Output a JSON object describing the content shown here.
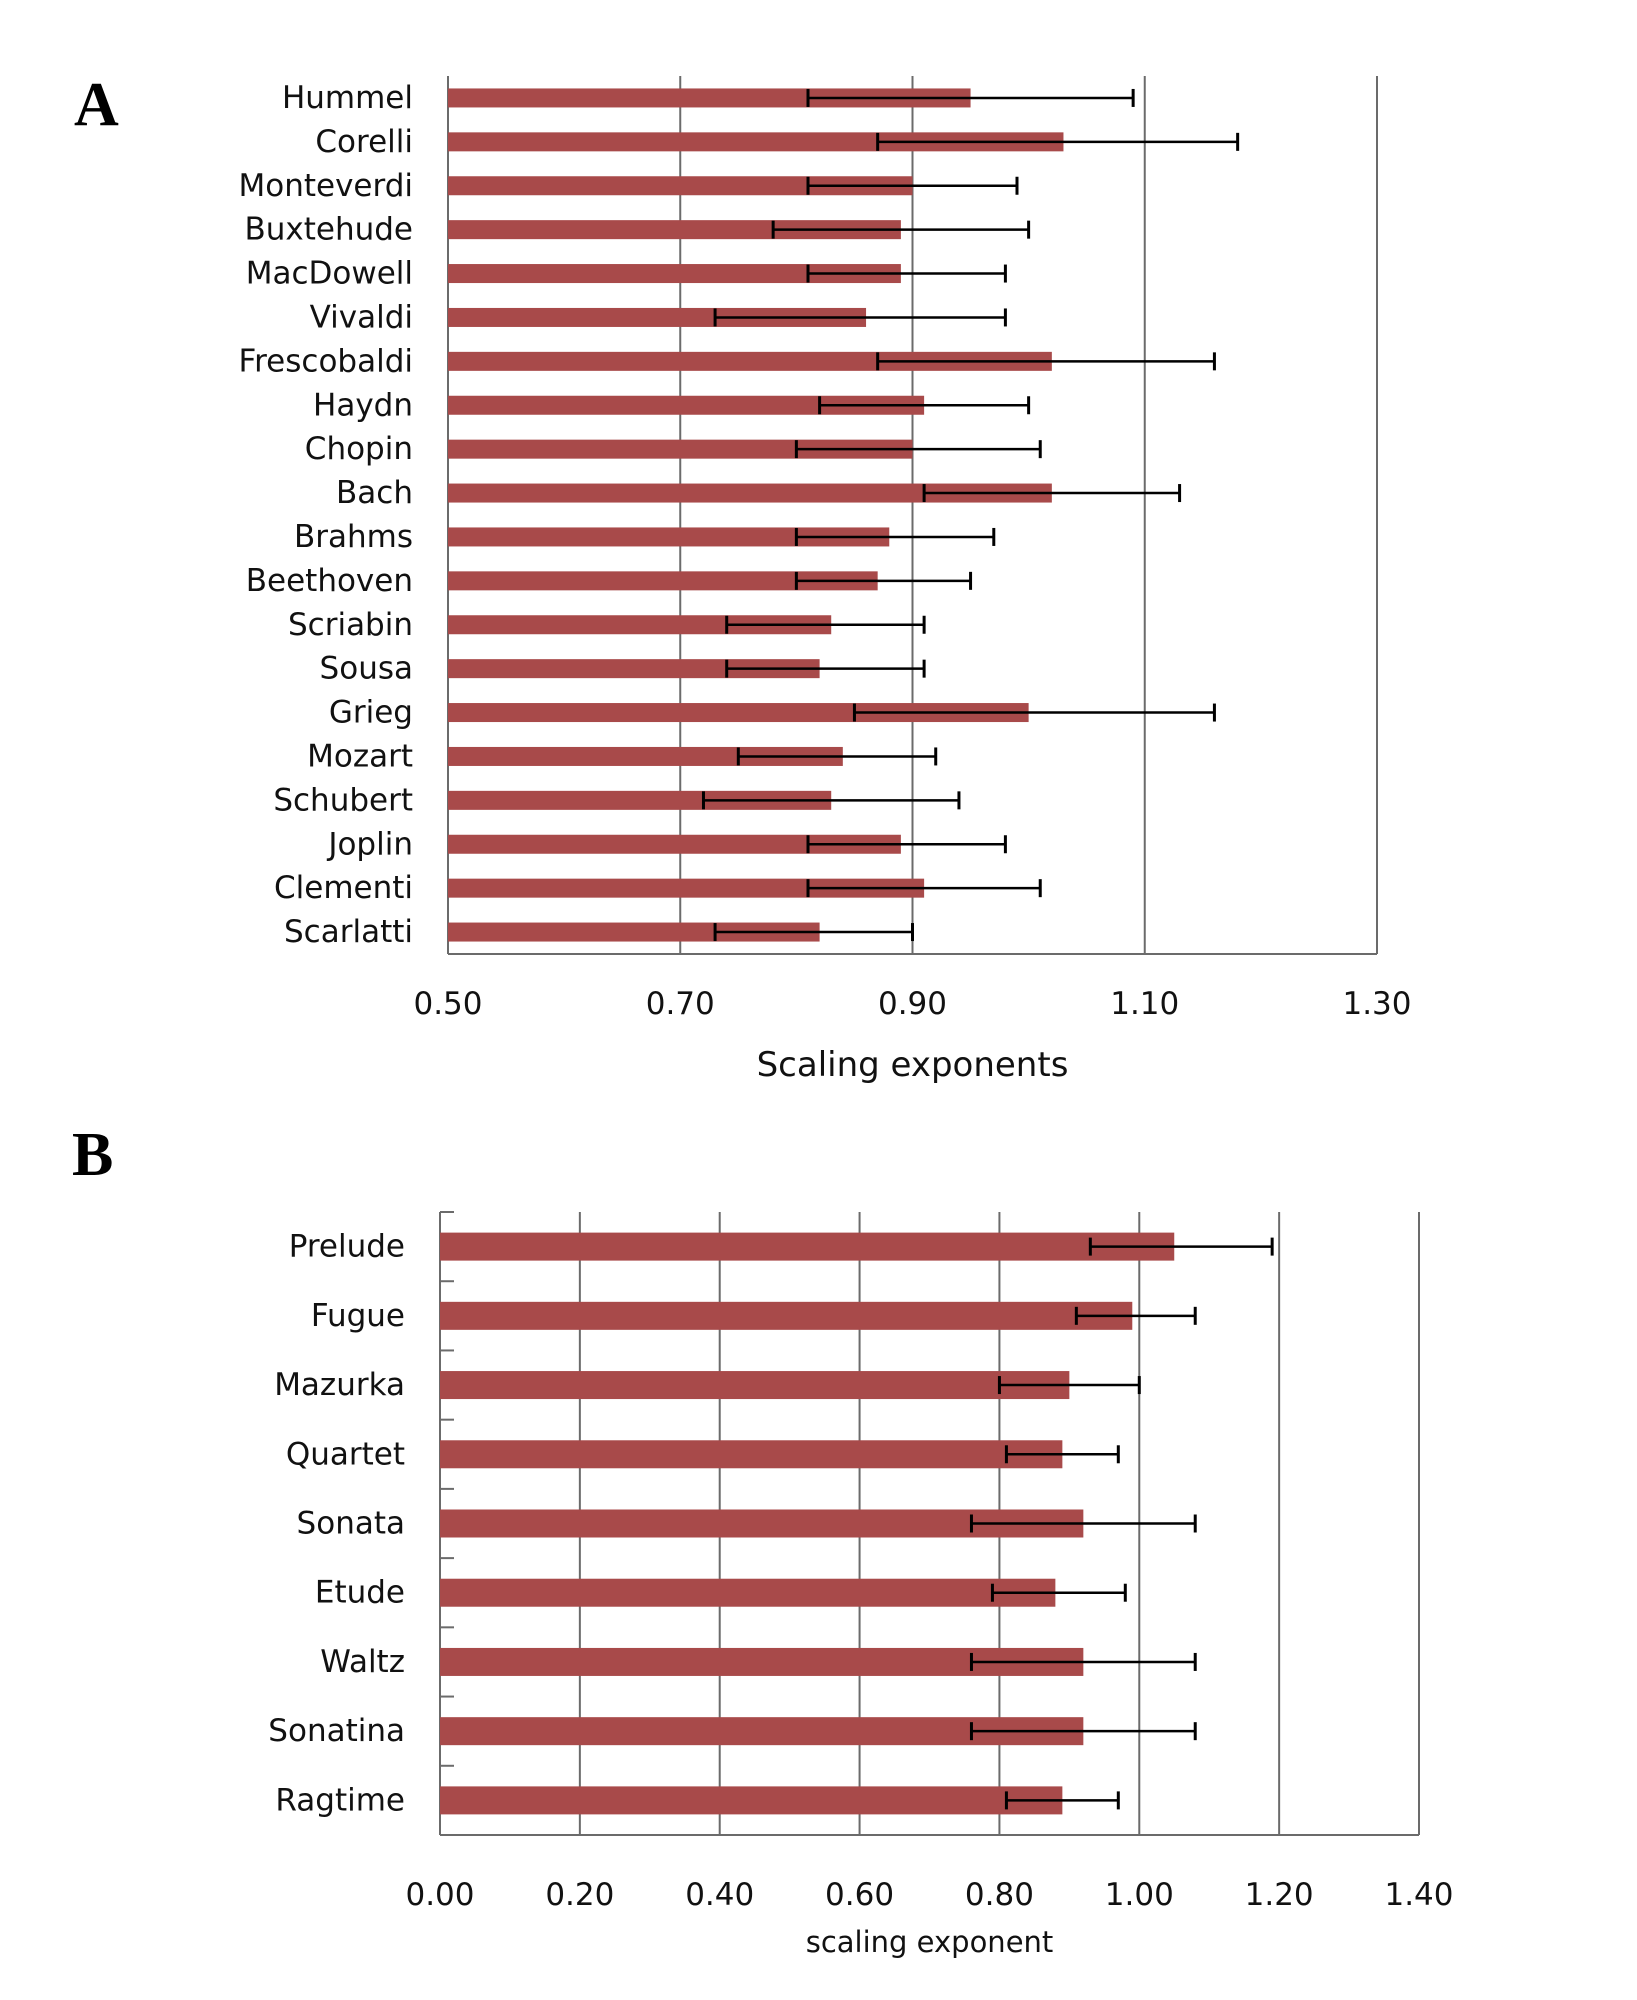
{
  "panels": {
    "a_letter": "A",
    "b_letter": "B"
  },
  "colors": {
    "bar": "#a84a4a",
    "error": "#000000",
    "grid": "#6b6b6b",
    "axis": "#6b6b6b"
  },
  "chart_data": [
    {
      "type": "bar",
      "orientation": "horizontal",
      "categories": [
        "Hummel",
        "Corelli",
        "Monteverdi",
        "Buxtehude",
        "MacDowell",
        "Vivaldi",
        "Frescobaldi",
        "Haydn",
        "Chopin",
        "Bach",
        "Brahms",
        "Beethoven",
        "Scriabin",
        "Sousa",
        "Grieg",
        "Mozart",
        "Schubert",
        "Joplin",
        "Clementi",
        "Scarlatti"
      ],
      "values": [
        0.95,
        1.03,
        0.9,
        0.89,
        0.89,
        0.86,
        1.02,
        0.91,
        0.9,
        1.02,
        0.88,
        0.87,
        0.83,
        0.82,
        1.0,
        0.84,
        0.83,
        0.89,
        0.91,
        0.82
      ],
      "error_low": [
        0.81,
        0.87,
        0.81,
        0.78,
        0.81,
        0.73,
        0.87,
        0.82,
        0.8,
        0.91,
        0.8,
        0.8,
        0.74,
        0.74,
        0.85,
        0.75,
        0.72,
        0.81,
        0.81,
        0.73
      ],
      "error_high": [
        1.09,
        1.18,
        0.99,
        1.0,
        0.98,
        0.98,
        1.16,
        1.0,
        1.01,
        1.13,
        0.97,
        0.95,
        0.91,
        0.91,
        1.16,
        0.92,
        0.94,
        0.98,
        1.01,
        0.9
      ],
      "xlim": [
        0.5,
        1.3
      ],
      "xticks": [
        "0.50",
        "0.70",
        "0.90",
        "1.10",
        "1.30"
      ],
      "xlabel": "Scaling exponents",
      "ylabel": "",
      "title": "",
      "grid": "vertical"
    },
    {
      "type": "bar",
      "orientation": "horizontal",
      "categories": [
        "Prelude",
        "Fugue",
        "Mazurka",
        "Quartet",
        "Sonata",
        "Etude",
        "Waltz",
        "Sonatina",
        "Ragtime"
      ],
      "values": [
        1.05,
        0.99,
        0.9,
        0.89,
        0.92,
        0.88,
        0.92,
        0.92,
        0.89
      ],
      "error_low": [
        0.93,
        0.91,
        0.8,
        0.81,
        0.76,
        0.79,
        0.76,
        0.76,
        0.81
      ],
      "error_high": [
        1.19,
        1.08,
        1.0,
        0.97,
        1.08,
        0.98,
        1.08,
        1.08,
        0.97
      ],
      "xlim": [
        0,
        1.4
      ],
      "xticks": [
        "0.00",
        "0.20",
        "0.40",
        "0.60",
        "0.80",
        "1.00",
        "1.20",
        "1.40"
      ],
      "xlabel": "scaling exponent",
      "ylabel": "",
      "title": "",
      "grid": "vertical"
    }
  ]
}
